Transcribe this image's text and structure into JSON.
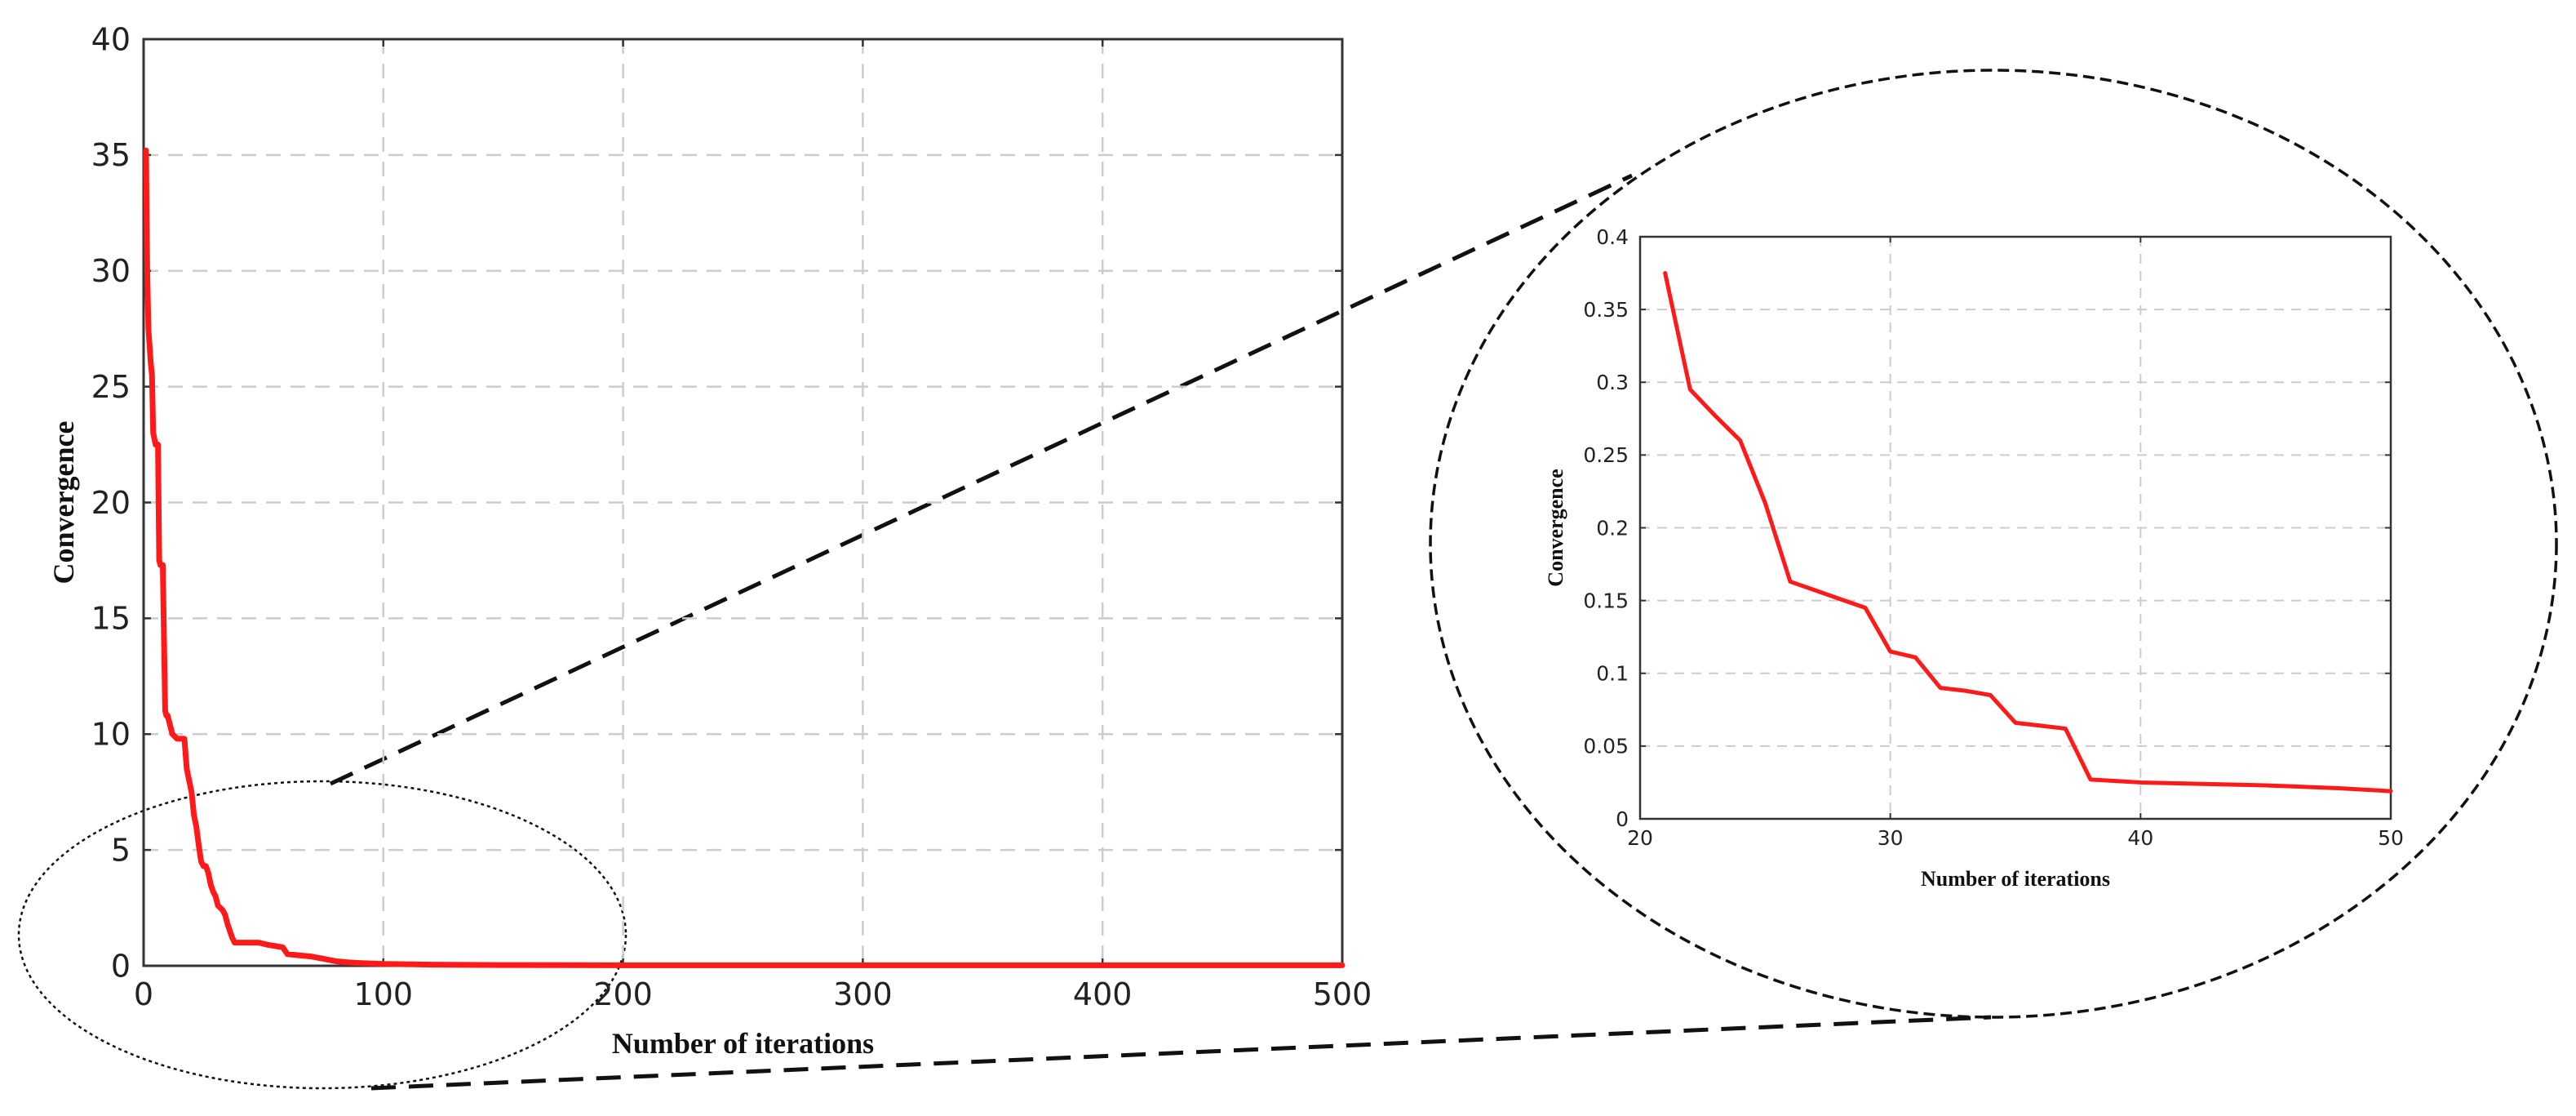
{
  "colors": {
    "line": "#ff1a1a",
    "grid": "#cccccc",
    "axis": "#333333",
    "connector": "#111111",
    "background": "#ffffff"
  },
  "chart_data": [
    {
      "type": "line",
      "title": "",
      "xlabel": "Number of iterations",
      "ylabel": "Convergence",
      "xlim": [
        0,
        500
      ],
      "ylim": [
        0,
        40
      ],
      "xticks": [
        0,
        100,
        200,
        300,
        400,
        500
      ],
      "yticks": [
        0,
        5,
        10,
        15,
        20,
        25,
        30,
        35,
        40
      ],
      "grid": true,
      "legend": "none",
      "series": [
        {
          "x": [
            1,
            1.5,
            2,
            3,
            3.5,
            4,
            5,
            6,
            6.5,
            7,
            8,
            9,
            9.5,
            10,
            12,
            13,
            14,
            15,
            17,
            18,
            19,
            20,
            21,
            22,
            23,
            24,
            25,
            26,
            27,
            28,
            29,
            30,
            31,
            32,
            33,
            34,
            35,
            36,
            37,
            38,
            39,
            40,
            48,
            52,
            55,
            58,
            60,
            65,
            70,
            75,
            80,
            85,
            90,
            100,
            120,
            150,
            200,
            300,
            400,
            500
          ],
          "y": [
            35.2,
            30.0,
            27.5,
            26.0,
            25.5,
            23.0,
            22.5,
            22.5,
            17.5,
            17.3,
            17.3,
            11.0,
            10.8,
            10.8,
            10.0,
            9.9,
            9.8,
            9.8,
            9.8,
            8.5,
            8.0,
            7.5,
            6.5,
            6.0,
            5.2,
            4.5,
            4.3,
            4.3,
            4.0,
            3.5,
            3.2,
            3.0,
            2.6,
            2.5,
            2.4,
            2.2,
            1.8,
            1.5,
            1.2,
            1.0,
            1.0,
            1.0,
            1.0,
            0.9,
            0.85,
            0.8,
            0.5,
            0.45,
            0.4,
            0.3,
            0.2,
            0.15,
            0.12,
            0.08,
            0.05,
            0.03,
            0.02,
            0.02,
            0.02,
            0.02
          ]
        }
      ]
    },
    {
      "type": "line",
      "title": "",
      "xlabel": "Number of iterations",
      "ylabel": "Convergence",
      "xlim": [
        20,
        50
      ],
      "ylim": [
        0,
        0.4
      ],
      "xticks": [
        20,
        30,
        40,
        50
      ],
      "yticks": [
        0,
        0.05,
        0.1,
        0.15,
        0.2,
        0.25,
        0.3,
        0.35,
        0.4
      ],
      "grid": true,
      "legend": "none",
      "series": [
        {
          "x": [
            21,
            22,
            23,
            24,
            25,
            26,
            27,
            28,
            29,
            30,
            31,
            32,
            33,
            34,
            35,
            36,
            37,
            38,
            39,
            40,
            45,
            48,
            50
          ],
          "y": [
            0.375,
            0.295,
            0.277,
            0.26,
            0.217,
            0.163,
            0.157,
            0.151,
            0.145,
            0.115,
            0.111,
            0.09,
            0.088,
            0.085,
            0.066,
            0.064,
            0.062,
            0.027,
            0.026,
            0.025,
            0.023,
            0.021,
            0.019
          ]
        }
      ]
    }
  ]
}
